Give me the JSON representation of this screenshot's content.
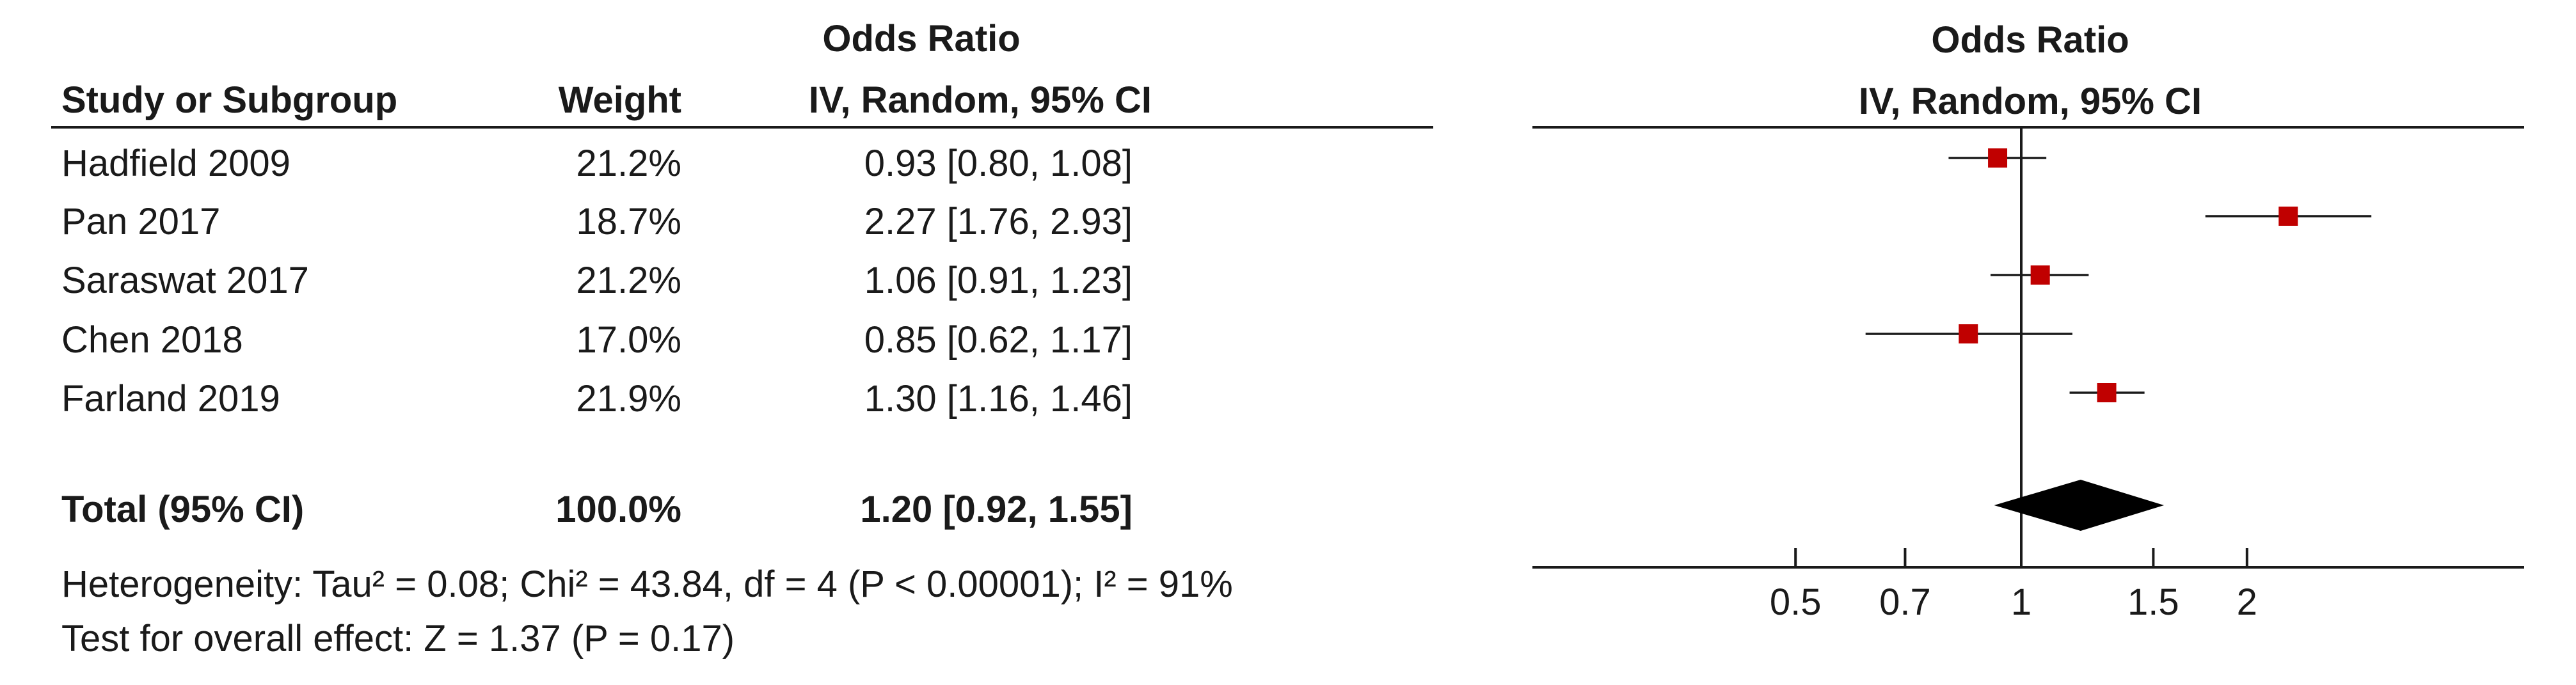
{
  "left_table": {
    "group_header": "Odds Ratio",
    "col_study": "Study or Subgroup",
    "col_weight": "Weight",
    "col_ci": "IV, Random, 95% CI",
    "rows": [
      {
        "study": "Hadfield 2009",
        "weight": "21.2%",
        "ci": "0.93 [0.80, 1.08]"
      },
      {
        "study": "Pan 2017",
        "weight": "18.7%",
        "ci": "2.27 [1.76, 2.93]"
      },
      {
        "study": "Saraswat 2017",
        "weight": "21.2%",
        "ci": "1.06 [0.91, 1.23]"
      },
      {
        "study": "Chen 2018",
        "weight": "17.0%",
        "ci": "0.85 [0.62, 1.17]"
      },
      {
        "study": "Farland 2019",
        "weight": "21.9%",
        "ci": "1.30 [1.16, 1.46]"
      }
    ],
    "total": {
      "study": "Total (95% CI)",
      "weight": "100.0%",
      "ci": "1.20 [0.92, 1.55]"
    },
    "heterogeneity": "Heterogeneity: Tau² = 0.08; Chi² = 43.84, df = 4 (P < 0.00001); I² = 91%",
    "overall_effect": "Test for overall effect: Z = 1.37 (P = 0.17)"
  },
  "plot_header": {
    "line1": "Odds Ratio",
    "line2": "IV, Random, 95% CI"
  },
  "chart_data": {
    "type": "forest",
    "x_scale": "log",
    "x_ticks": [
      0.5,
      0.7,
      1,
      1.5,
      2
    ],
    "x_tick_labels": [
      "0.5",
      "0.7",
      "1",
      "1.5",
      "2"
    ],
    "reference_line": 1,
    "marker_color": "#c00000",
    "studies": [
      {
        "name": "Hadfield 2009",
        "or": 0.93,
        "lo": 0.8,
        "hi": 1.08,
        "weight": 21.2
      },
      {
        "name": "Pan 2017",
        "or": 2.27,
        "lo": 1.76,
        "hi": 2.93,
        "weight": 18.7
      },
      {
        "name": "Saraswat 2017",
        "or": 1.06,
        "lo": 0.91,
        "hi": 1.23,
        "weight": 21.2
      },
      {
        "name": "Chen 2018",
        "or": 0.85,
        "lo": 0.62,
        "hi": 1.17,
        "weight": 17.0
      },
      {
        "name": "Farland 2019",
        "or": 1.3,
        "lo": 1.16,
        "hi": 1.46,
        "weight": 21.9
      }
    ],
    "pooled": {
      "or": 1.2,
      "lo": 0.92,
      "hi": 1.55
    }
  }
}
